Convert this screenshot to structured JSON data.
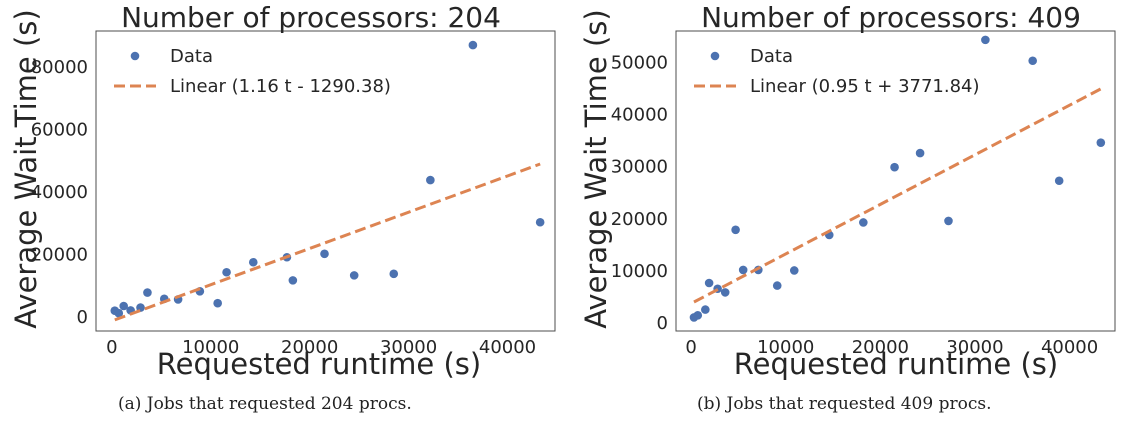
{
  "chart_data": [
    {
      "type": "scatter",
      "title": "Number of processors: 204",
      "xlabel": "Requested runtime (s)",
      "ylabel": "Average Wait Time (s)",
      "xlim": [
        -1600,
        44800
      ],
      "ylim": [
        -4500,
        91500
      ],
      "xticks": [
        0,
        10000,
        20000,
        30000,
        40000
      ],
      "xtick_labels": [
        "0",
        "10000",
        "20000",
        "30000",
        "40000"
      ],
      "yticks": [
        0,
        20000,
        40000,
        60000,
        80000
      ],
      "ytick_labels": [
        "0",
        "20000",
        "40000",
        "60000",
        "80000"
      ],
      "grid": false,
      "legend_position": "top-left",
      "series": [
        {
          "name": "Data",
          "kind": "scatter",
          "color": "#4c72b0",
          "points": [
            [
              300,
              2000
            ],
            [
              700,
              1200
            ],
            [
              1200,
              3500
            ],
            [
              1900,
              2100
            ],
            [
              2900,
              3000
            ],
            [
              3600,
              7800
            ],
            [
              5300,
              5800
            ],
            [
              6700,
              5600
            ],
            [
              8900,
              8200
            ],
            [
              10700,
              4400
            ],
            [
              11600,
              14300
            ],
            [
              14300,
              17500
            ],
            [
              17700,
              19100
            ],
            [
              18300,
              11700
            ],
            [
              21500,
              20200
            ],
            [
              24500,
              13300
            ],
            [
              28500,
              13800
            ],
            [
              32200,
              43800
            ],
            [
              36500,
              87000
            ],
            [
              43300,
              30300
            ]
          ]
        },
        {
          "name": "Linear (1.16 t - 1290.38)",
          "kind": "line",
          "color": "#dd8452",
          "dash": true,
          "slope": 1.16,
          "intercept": -1290.38,
          "x_range": [
            300,
            43300
          ]
        }
      ]
    },
    {
      "type": "scatter",
      "title": "Number of processors: 409",
      "xlabel": "Requested runtime (s)",
      "ylabel": "Average Wait Time (s)",
      "xlim": [
        -1600,
        44800
      ],
      "ylim": [
        -1500,
        56000
      ],
      "xticks": [
        0,
        10000,
        20000,
        30000,
        40000
      ],
      "xtick_labels": [
        "0",
        "10000",
        "20000",
        "30000",
        "40000"
      ],
      "yticks": [
        0,
        10000,
        20000,
        30000,
        40000,
        50000
      ],
      "ytick_labels": [
        "0",
        "10000",
        "20000",
        "30000",
        "40000",
        "50000"
      ],
      "grid": false,
      "legend_position": "top-left",
      "series": [
        {
          "name": "Data",
          "kind": "scatter",
          "color": "#4c72b0",
          "points": [
            [
              300,
              1100
            ],
            [
              700,
              1500
            ],
            [
              1500,
              2600
            ],
            [
              1900,
              7700
            ],
            [
              2800,
              6600
            ],
            [
              3600,
              5900
            ],
            [
              4700,
              17900
            ],
            [
              5500,
              10200
            ],
            [
              7100,
              10200
            ],
            [
              9100,
              7200
            ],
            [
              10900,
              10100
            ],
            [
              14600,
              16900
            ],
            [
              18200,
              19300
            ],
            [
              21500,
              29900
            ],
            [
              24200,
              32600
            ],
            [
              27200,
              19600
            ],
            [
              31100,
              54300
            ],
            [
              36100,
              50300
            ],
            [
              38900,
              27300
            ],
            [
              43300,
              34600
            ]
          ]
        },
        {
          "name": "Linear (0.95 t + 3771.84)",
          "kind": "line",
          "color": "#dd8452",
          "dash": true,
          "slope": 0.95,
          "intercept": 3771.84,
          "x_range": [
            300,
            43300
          ]
        }
      ]
    }
  ],
  "captions": {
    "a": "(a) Jobs that requested 204 procs.",
    "b": "(b) Jobs that requested 409 procs."
  }
}
